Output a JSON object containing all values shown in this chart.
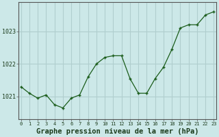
{
  "x": [
    0,
    1,
    2,
    3,
    4,
    5,
    6,
    7,
    8,
    9,
    10,
    11,
    12,
    13,
    14,
    15,
    16,
    17,
    18,
    19,
    20,
    21,
    22,
    23
  ],
  "y": [
    1021.3,
    1021.1,
    1020.95,
    1021.05,
    1020.75,
    1020.65,
    1020.95,
    1021.05,
    1021.6,
    1022.0,
    1022.2,
    1022.25,
    1022.25,
    1021.55,
    1021.1,
    1021.1,
    1021.55,
    1021.9,
    1022.45,
    1023.1,
    1023.2,
    1023.2,
    1023.5,
    1023.6
  ],
  "line_color": "#1a5c1a",
  "marker_color": "#1a5c1a",
  "bg_color": "#cce8e8",
  "grid_color": "#b0cece",
  "xlabel": "Graphe pression niveau de la mer (hPa)",
  "xlabel_fontsize": 7.5,
  "ytick_labels": [
    "1021",
    "1022",
    "1023"
  ],
  "ytick_values": [
    1021,
    1022,
    1023
  ],
  "ylim": [
    1020.3,
    1023.9
  ],
  "xlim": [
    -0.3,
    23.3
  ],
  "xticks": [
    0,
    1,
    2,
    3,
    4,
    5,
    6,
    7,
    8,
    9,
    10,
    11,
    12,
    13,
    14,
    15,
    16,
    17,
    18,
    19,
    20,
    21,
    22,
    23
  ],
  "xtick_labels": [
    "0",
    "1",
    "2",
    "3",
    "4",
    "5",
    "6",
    "7",
    "8",
    "9",
    "10",
    "11",
    "12",
    "13",
    "14",
    "15",
    "16",
    "17",
    "18",
    "19",
    "20",
    "21",
    "22",
    "23"
  ]
}
